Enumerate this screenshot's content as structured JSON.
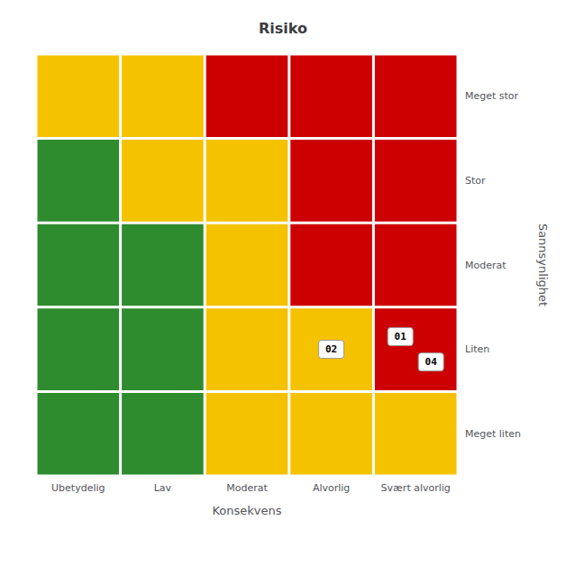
{
  "chart_data": {
    "type": "heatmap",
    "title": "Risiko",
    "x_label": "Konsekvens",
    "y_label": "Sannsynlighet",
    "x": [
      "Ubetydelig",
      "Lav",
      "Moderat",
      "Alvorlig",
      "Svært alvorlig"
    ],
    "y": [
      "Meget liten",
      "Liten",
      "Moderat",
      "Stor",
      "Meget stor"
    ],
    "colors": [
      [
        "#2e8b2e",
        "#2e8b2e",
        "#f5c200",
        "#f5c200",
        "#f5c200"
      ],
      [
        "#2e8b2e",
        "#2e8b2e",
        "#f5c200",
        "#f5c200",
        "#cc0000"
      ],
      [
        "#2e8b2e",
        "#2e8b2e",
        "#f5c200",
        "#cc0000",
        "#cc0000"
      ],
      [
        "#2e8b2e",
        "#f5c200",
        "#f5c200",
        "#cc0000",
        "#cc0000"
      ],
      [
        "#f5c200",
        "#f5c200",
        "#cc0000",
        "#cc0000",
        "#cc0000"
      ]
    ],
    "annotations": [
      {
        "text": "01",
        "x": "Svært alvorlig",
        "y": "Liten"
      },
      {
        "text": "02",
        "x": "Alvorlig",
        "y": "Liten"
      },
      {
        "text": "04",
        "x": "Svært alvorlig",
        "y": "Liten"
      }
    ]
  }
}
